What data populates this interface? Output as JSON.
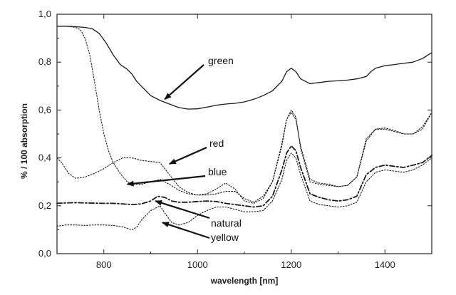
{
  "chart_data": {
    "type": "line",
    "title": "",
    "xlabel": "wavelength [nm]",
    "ylabel": "% / 100  absorption",
    "xlim": [
      700,
      1500
    ],
    "ylim": [
      0.0,
      1.0
    ],
    "x_ticks": [
      800,
      1000,
      1200,
      1400
    ],
    "x_tick_labels": [
      "800",
      "1000",
      "1200",
      "1400"
    ],
    "y_ticks": [
      0.0,
      0.2,
      0.4,
      0.6,
      0.8,
      1.0
    ],
    "y_tick_labels": [
      "0,0",
      "0,2",
      "0,4",
      "0,6",
      "0,8",
      "1,0"
    ],
    "grid": false,
    "series": [
      {
        "name": "green",
        "style": "solid",
        "x": [
          700,
          720,
          740,
          760,
          775,
          790,
          805,
          820,
          835,
          850,
          860,
          870,
          885,
          900,
          920,
          940,
          960,
          980,
          1000,
          1020,
          1040,
          1060,
          1080,
          1100,
          1120,
          1140,
          1160,
          1180,
          1190,
          1200,
          1210,
          1220,
          1240,
          1260,
          1280,
          1300,
          1320,
          1340,
          1360,
          1370,
          1380,
          1400,
          1420,
          1440,
          1460,
          1480,
          1500
        ],
        "values": [
          0.95,
          0.95,
          0.948,
          0.945,
          0.94,
          0.92,
          0.88,
          0.83,
          0.79,
          0.77,
          0.75,
          0.72,
          0.69,
          0.66,
          0.64,
          0.625,
          0.61,
          0.604,
          0.605,
          0.612,
          0.62,
          0.625,
          0.628,
          0.634,
          0.645,
          0.66,
          0.68,
          0.72,
          0.76,
          0.775,
          0.76,
          0.73,
          0.71,
          0.715,
          0.72,
          0.722,
          0.725,
          0.73,
          0.74,
          0.76,
          0.775,
          0.785,
          0.79,
          0.795,
          0.8,
          0.815,
          0.84
        ]
      },
      {
        "name": "red",
        "style": "dotted",
        "x": [
          700,
          710,
          725,
          740,
          760,
          780,
          800,
          820,
          840,
          860,
          880,
          900,
          920,
          940,
          960,
          980,
          1000,
          1020,
          1040,
          1060,
          1080,
          1100,
          1120,
          1140,
          1160,
          1180,
          1190,
          1200,
          1210,
          1220,
          1240,
          1260,
          1280,
          1300,
          1320,
          1340,
          1360,
          1380,
          1400,
          1420,
          1440,
          1460,
          1480,
          1500
        ],
        "values": [
          0.4,
          0.38,
          0.335,
          0.315,
          0.32,
          0.335,
          0.355,
          0.38,
          0.4,
          0.4,
          0.39,
          0.385,
          0.38,
          0.33,
          0.28,
          0.255,
          0.245,
          0.245,
          0.25,
          0.26,
          0.26,
          0.23,
          0.215,
          0.24,
          0.3,
          0.45,
          0.56,
          0.6,
          0.57,
          0.44,
          0.3,
          0.29,
          0.285,
          0.28,
          0.285,
          0.32,
          0.48,
          0.52,
          0.52,
          0.51,
          0.5,
          0.5,
          0.53,
          0.59
        ]
      },
      {
        "name": "blue",
        "style": "dotted",
        "x": [
          700,
          720,
          740,
          750,
          760,
          770,
          780,
          790,
          800,
          810,
          820,
          835,
          850,
          860,
          880,
          900,
          920,
          940,
          960,
          980,
          1000,
          1020,
          1040,
          1060,
          1080,
          1100,
          1120,
          1140,
          1160,
          1180,
          1190,
          1200,
          1210,
          1220,
          1240,
          1260,
          1280,
          1300,
          1320,
          1340,
          1360,
          1380,
          1400,
          1420,
          1440,
          1460,
          1480,
          1500
        ],
        "values": [
          0.95,
          0.95,
          0.945,
          0.935,
          0.9,
          0.83,
          0.72,
          0.6,
          0.5,
          0.43,
          0.38,
          0.335,
          0.3,
          0.29,
          0.29,
          0.3,
          0.31,
          0.29,
          0.265,
          0.25,
          0.245,
          0.25,
          0.27,
          0.295,
          0.27,
          0.22,
          0.21,
          0.23,
          0.3,
          0.46,
          0.56,
          0.59,
          0.56,
          0.45,
          0.31,
          0.295,
          0.29,
          0.28,
          0.285,
          0.32,
          0.47,
          0.52,
          0.525,
          0.515,
          0.5,
          0.5,
          0.52,
          0.59
        ]
      },
      {
        "name": "natural",
        "style": "dashdot",
        "x": [
          700,
          720,
          740,
          760,
          780,
          800,
          820,
          840,
          860,
          880,
          900,
          915,
          930,
          945,
          960,
          980,
          1000,
          1020,
          1040,
          1060,
          1080,
          1100,
          1120,
          1140,
          1160,
          1180,
          1190,
          1200,
          1210,
          1220,
          1240,
          1260,
          1280,
          1300,
          1320,
          1340,
          1360,
          1380,
          1400,
          1420,
          1440,
          1460,
          1480,
          1500
        ],
        "values": [
          0.21,
          0.212,
          0.213,
          0.212,
          0.211,
          0.21,
          0.21,
          0.208,
          0.205,
          0.208,
          0.22,
          0.24,
          0.235,
          0.22,
          0.215,
          0.215,
          0.218,
          0.22,
          0.218,
          0.21,
          0.205,
          0.2,
          0.195,
          0.2,
          0.24,
          0.35,
          0.42,
          0.45,
          0.43,
          0.36,
          0.25,
          0.235,
          0.225,
          0.22,
          0.225,
          0.24,
          0.33,
          0.36,
          0.37,
          0.365,
          0.36,
          0.37,
          0.38,
          0.41
        ]
      },
      {
        "name": "yellow",
        "style": "dotted",
        "x": [
          700,
          720,
          740,
          760,
          780,
          800,
          820,
          840,
          860,
          870,
          880,
          900,
          920,
          930,
          945,
          960,
          980,
          1000,
          1020,
          1040,
          1060,
          1080,
          1100,
          1120,
          1140,
          1160,
          1180,
          1190,
          1200,
          1210,
          1220,
          1240,
          1260,
          1280,
          1300,
          1320,
          1340,
          1360,
          1380,
          1400,
          1420,
          1440,
          1460,
          1480,
          1500
        ],
        "values": [
          0.115,
          0.12,
          0.12,
          0.118,
          0.12,
          0.12,
          0.118,
          0.112,
          0.1,
          0.11,
          0.14,
          0.18,
          0.2,
          0.17,
          0.13,
          0.12,
          0.13,
          0.16,
          0.18,
          0.195,
          0.195,
          0.185,
          0.175,
          0.175,
          0.18,
          0.22,
          0.31,
          0.39,
          0.42,
          0.4,
          0.33,
          0.22,
          0.205,
          0.2,
          0.195,
          0.2,
          0.215,
          0.3,
          0.34,
          0.35,
          0.345,
          0.34,
          0.35,
          0.37,
          0.4
        ]
      }
    ],
    "annotations": [
      {
        "text": "green",
        "target_x": 930,
        "target_y": 0.645
      },
      {
        "text": "red",
        "target_x": 940,
        "target_y": 0.375
      },
      {
        "text": "blue",
        "target_x": 850,
        "target_y": 0.29
      },
      {
        "text": "natural",
        "target_x": 910,
        "target_y": 0.22
      },
      {
        "text": "yellow",
        "target_x": 925,
        "target_y": 0.13
      }
    ]
  }
}
